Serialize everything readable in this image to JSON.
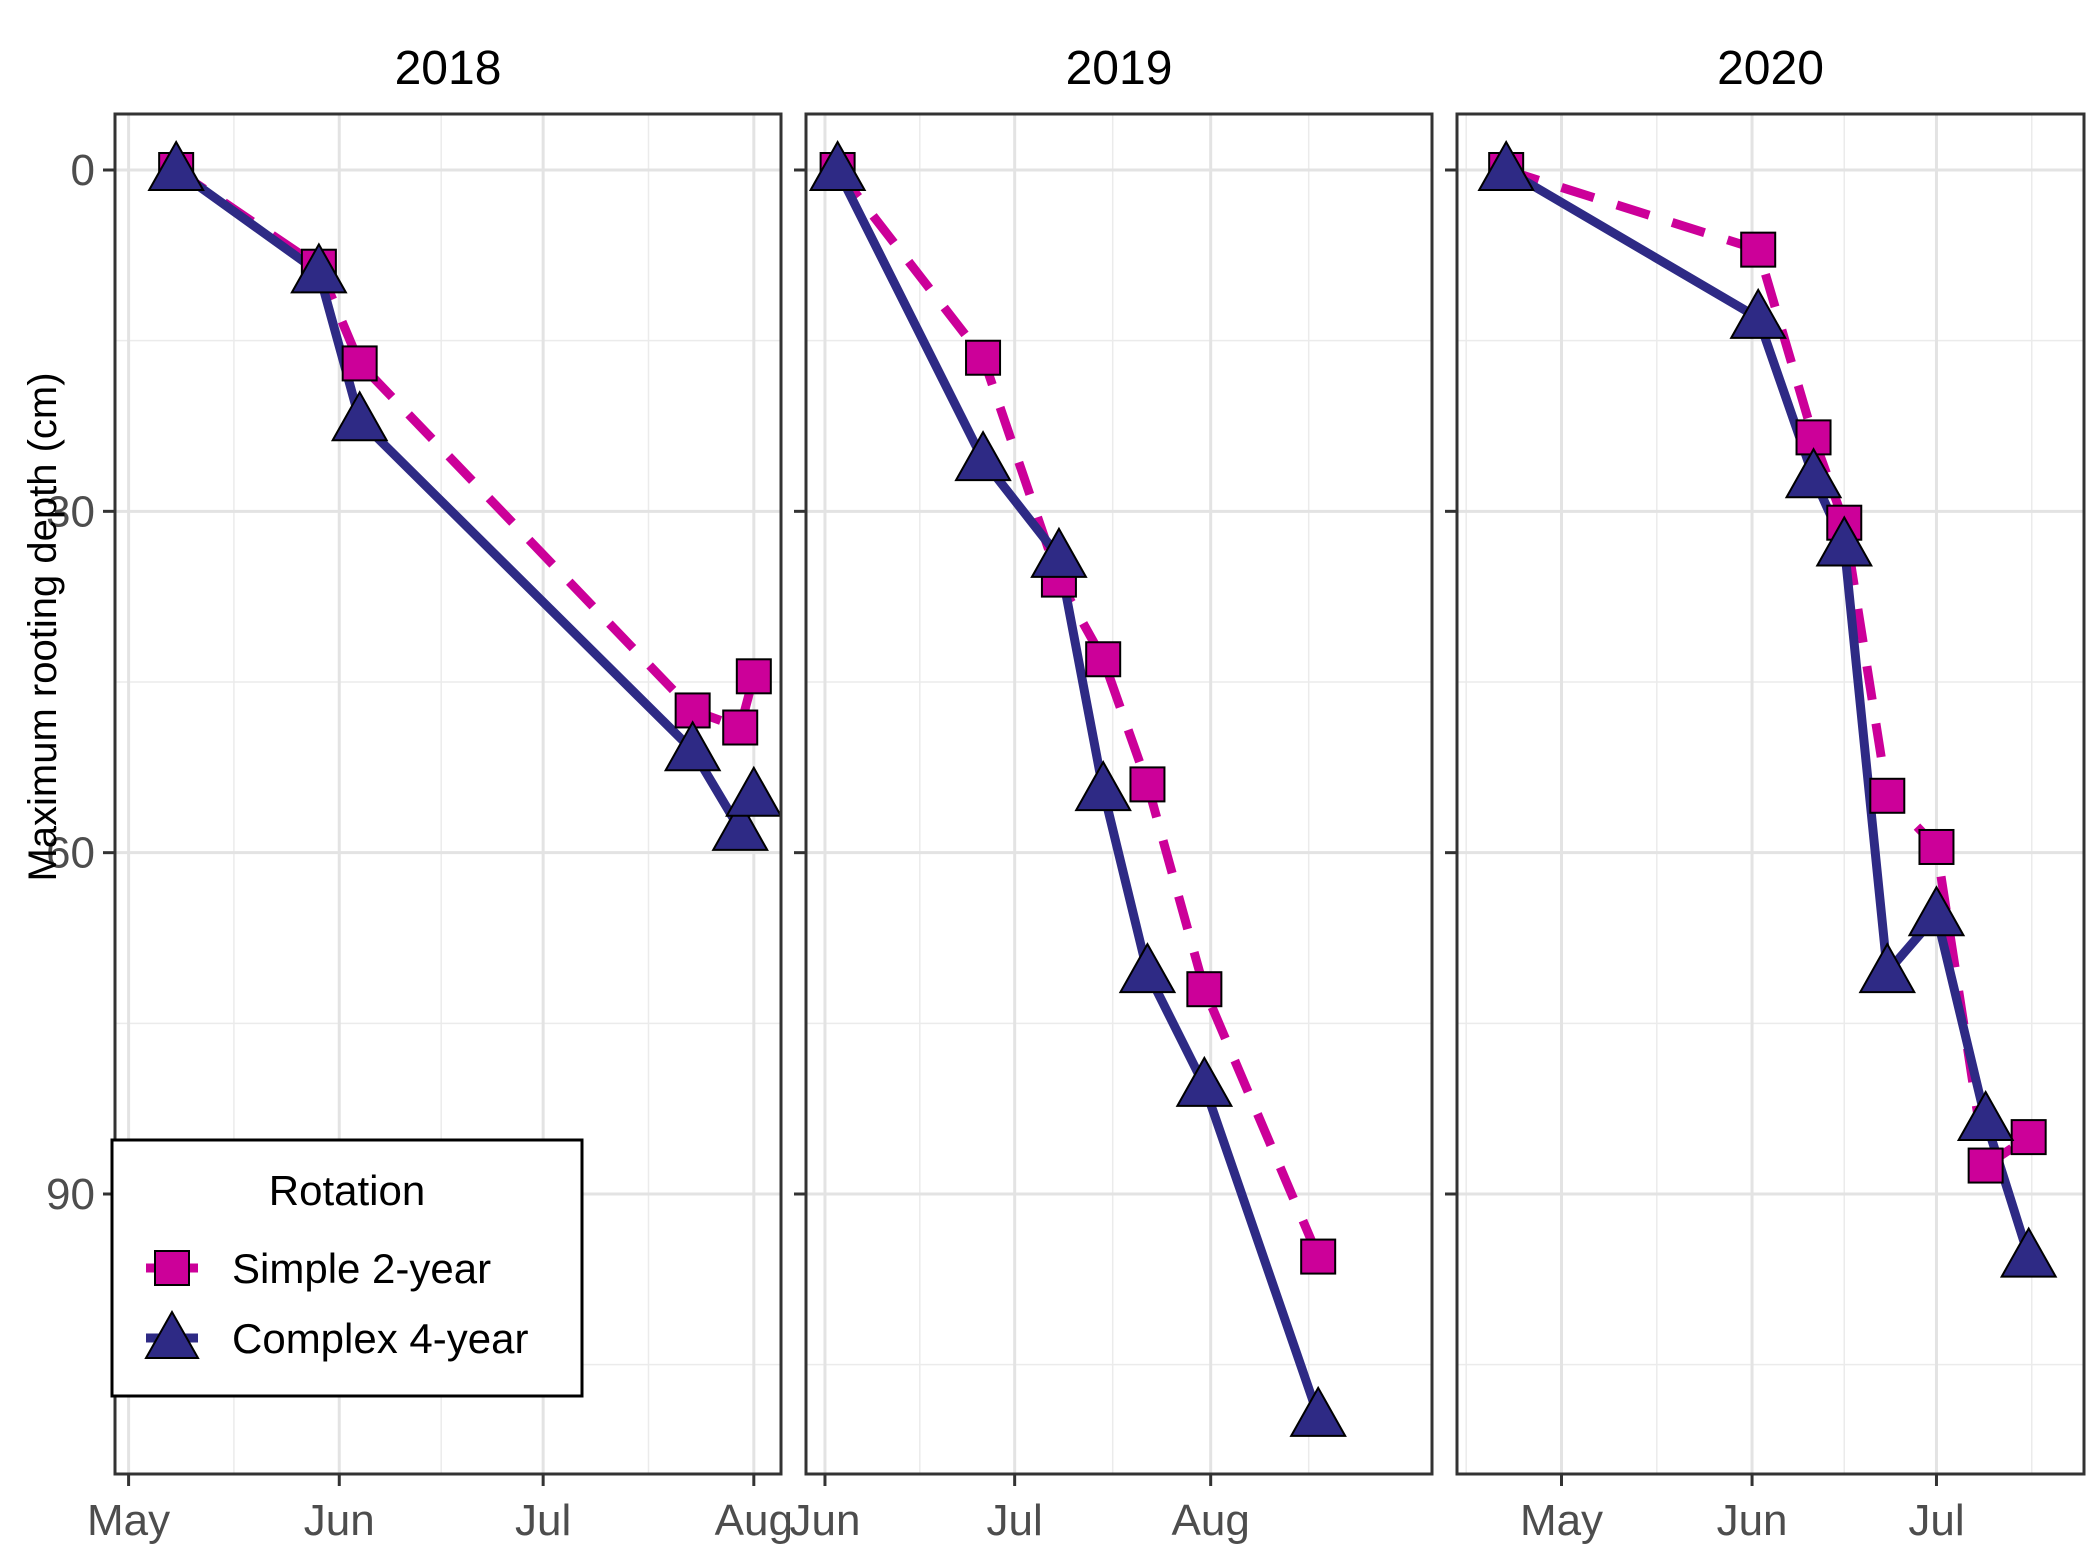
{
  "chart_data": {
    "type": "line",
    "ylabel": "Maximum rooting depth (cm)",
    "y_reversed": true,
    "ylim": [
      0,
      112
    ],
    "y_ticks": [
      0,
      30,
      60,
      90
    ],
    "grid": true,
    "legend": {
      "title": "Rotation",
      "placement": "bottom-left",
      "entries": [
        "Simple 2-year",
        "Complex 4-year"
      ]
    },
    "colors": {
      "simple": "#CC0099",
      "complex": "#2E2A85"
    },
    "panels": [
      {
        "title": "2018",
        "xlim": [
          "2018-04-29",
          "2018-08-05"
        ],
        "x_ticks": [
          "2018-05-01",
          "2018-06-01",
          "2018-07-01",
          "2018-08-01"
        ],
        "x_tick_labels": [
          "May",
          "Jun",
          "Jul",
          "Aug"
        ],
        "series": [
          {
            "name": "Simple 2-year",
            "x": [
              "2018-05-08",
              "2018-05-29",
              "2018-06-04",
              "2018-07-23",
              "2018-07-30",
              "2018-08-01"
            ],
            "y": [
              0,
              8.5,
              17,
              47.5,
              49,
              44.5
            ]
          },
          {
            "name": "Complex 4-year",
            "x": [
              "2018-05-08",
              "2018-05-29",
              "2018-06-04",
              "2018-07-23",
              "2018-07-30",
              "2018-08-01"
            ],
            "y": [
              0,
              9,
              22,
              51,
              58,
              55
            ]
          }
        ]
      },
      {
        "title": "2019",
        "xlim": [
          "2019-05-29",
          "2019-09-05"
        ],
        "x_ticks": [
          "2019-06-01",
          "2019-07-01",
          "2019-08-01"
        ],
        "x_tick_labels": [
          "Jun",
          "Jul",
          "Aug"
        ],
        "series": [
          {
            "name": "Simple 2-year",
            "x": [
              "2019-06-03",
              "2019-06-26",
              "2019-07-08",
              "2019-07-15",
              "2019-07-22",
              "2019-07-31",
              "2019-08-18"
            ],
            "y": [
              0,
              16.5,
              36,
              43,
              54,
              72,
              95.5
            ]
          },
          {
            "name": "Complex 4-year",
            "x": [
              "2019-06-03",
              "2019-06-26",
              "2019-07-08",
              "2019-07-15",
              "2019-07-22",
              "2019-07-31",
              "2019-08-18"
            ],
            "y": [
              0,
              25.5,
              34,
              54.5,
              70.5,
              80.5,
              109.5
            ]
          }
        ]
      },
      {
        "title": "2020",
        "xlim": [
          "2020-04-14",
          "2020-07-25"
        ],
        "x_ticks": [
          "2020-05-01",
          "2020-06-01",
          "2020-07-01"
        ],
        "x_tick_labels": [
          "May",
          "Jun",
          "Jul"
        ],
        "series": [
          {
            "name": "Simple 2-year",
            "x": [
              "2020-04-22",
              "2020-06-02",
              "2020-06-11",
              "2020-06-16",
              "2020-06-23",
              "2020-07-01",
              "2020-07-09",
              "2020-07-16"
            ],
            "y": [
              0,
              7,
              23.5,
              31,
              55,
              59.5,
              87.5,
              85
            ]
          },
          {
            "name": "Complex 4-year",
            "x": [
              "2020-04-22",
              "2020-06-02",
              "2020-06-11",
              "2020-06-16",
              "2020-06-23",
              "2020-07-01",
              "2020-07-09",
              "2020-07-16"
            ],
            "y": [
              0,
              13,
              27,
              33,
              70.5,
              65.5,
              83.5,
              95.5
            ]
          }
        ]
      }
    ]
  }
}
